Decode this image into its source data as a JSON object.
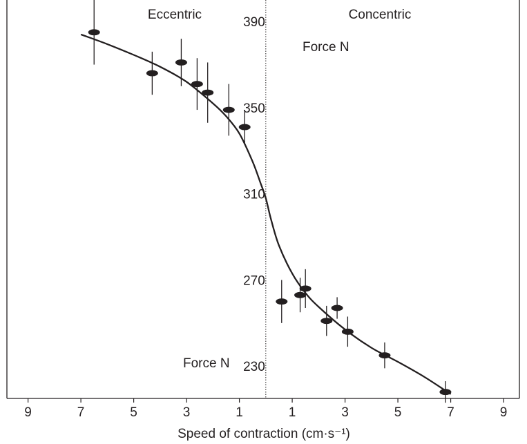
{
  "chart_data": {
    "type": "scatter",
    "title": "",
    "xlabel": "Speed of contraction (cm·s⁻¹)",
    "ylabel": "Force N",
    "ylabel_repeat": "Force N",
    "region_left": "Eccentric",
    "region_right": "Concentric",
    "x_ticks": [
      -9,
      -7,
      -5,
      -3,
      -1,
      1,
      3,
      5,
      7,
      9
    ],
    "x_tick_labels": [
      "9",
      "7",
      "5",
      "3",
      "1",
      "1",
      "3",
      "5",
      "7",
      "9"
    ],
    "y_ticks": [
      230,
      270,
      310,
      350,
      390
    ],
    "y_tick_labels": [
      "230",
      "270",
      "310",
      "350",
      "390"
    ],
    "xlim": [
      -9.8,
      9.6
    ],
    "ylim": [
      215,
      400
    ],
    "grid": false,
    "points": [
      {
        "x": -6.5,
        "y": 385,
        "err": 15
      },
      {
        "x": -4.3,
        "y": 366,
        "err": 10
      },
      {
        "x": -3.2,
        "y": 371,
        "err": 11
      },
      {
        "x": -2.6,
        "y": 361,
        "err": 12
      },
      {
        "x": -2.2,
        "y": 357,
        "err": 14
      },
      {
        "x": -1.4,
        "y": 349,
        "err": 12
      },
      {
        "x": -0.8,
        "y": 341,
        "err": 8
      },
      {
        "x": 0.6,
        "y": 260,
        "err": 10
      },
      {
        "x": 1.3,
        "y": 263,
        "err": 8
      },
      {
        "x": 1.5,
        "y": 266,
        "err": 9
      },
      {
        "x": 2.3,
        "y": 251,
        "err": 7
      },
      {
        "x": 2.7,
        "y": 257,
        "err": 5
      },
      {
        "x": 3.1,
        "y": 246,
        "err": 7
      },
      {
        "x": 4.5,
        "y": 235,
        "err": 6
      },
      {
        "x": 6.8,
        "y": 218,
        "err": 5
      }
    ],
    "fit_curve": {
      "x": [
        -7.0,
        -6.0,
        -5.0,
        -4.0,
        -3.0,
        -2.0,
        -1.5,
        -1.0,
        -0.5,
        -0.2,
        0.0,
        0.2,
        0.5,
        1.0,
        1.5,
        2.0,
        3.0,
        4.0,
        5.0,
        6.0,
        7.0
      ],
      "y": [
        384,
        379.5,
        374.5,
        369,
        362,
        352,
        346,
        338,
        325,
        315,
        308,
        298,
        286,
        273,
        264,
        257.5,
        247,
        238.5,
        232,
        225,
        217
      ]
    }
  }
}
